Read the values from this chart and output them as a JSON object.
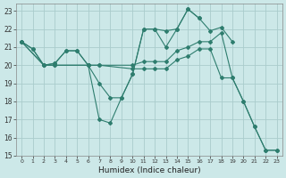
{
  "xlabel": "Humidex (Indice chaleur)",
  "background_color": "#cce8e8",
  "line_color": "#2e7d6e",
  "grid_color": "#aacccc",
  "xlim": [
    -0.5,
    23.5
  ],
  "ylim": [
    15,
    23.4
  ],
  "xticks": [
    0,
    1,
    2,
    3,
    4,
    5,
    6,
    7,
    8,
    9,
    10,
    11,
    12,
    13,
    14,
    15,
    16,
    17,
    18,
    19,
    20,
    21,
    22,
    23
  ],
  "yticks": [
    15,
    16,
    17,
    18,
    19,
    20,
    21,
    22,
    23
  ],
  "lines": [
    {
      "x": [
        0,
        1,
        2,
        3,
        4,
        5,
        6,
        7,
        8,
        9,
        10,
        11,
        12,
        13,
        14,
        15,
        16,
        17,
        18,
        19
      ],
      "y": [
        21.3,
        20.9,
        20.0,
        20.1,
        20.8,
        20.8,
        20.0,
        19.0,
        18.2,
        18.2,
        19.5,
        22.0,
        22.0,
        21.9,
        22.0,
        23.1,
        22.6,
        21.9,
        22.1,
        21.3
      ]
    },
    {
      "x": [
        0,
        1,
        2,
        3,
        4,
        5,
        6,
        7,
        8,
        9,
        10,
        11,
        12,
        13,
        14,
        15,
        16
      ],
      "y": [
        21.3,
        20.9,
        20.0,
        20.1,
        20.8,
        20.8,
        20.0,
        17.0,
        16.8,
        18.2,
        19.5,
        22.0,
        22.0,
        21.0,
        22.0,
        23.1,
        22.6
      ]
    },
    {
      "x": [
        0,
        2,
        3,
        6,
        7,
        10,
        11,
        12,
        13,
        14,
        15,
        16,
        17,
        18,
        19,
        20,
        21,
        22,
        23
      ],
      "y": [
        21.3,
        20.0,
        20.0,
        20.0,
        20.0,
        20.0,
        20.2,
        20.2,
        20.2,
        20.8,
        21.0,
        21.3,
        21.3,
        21.8,
        19.3,
        18.0,
        16.6,
        15.3,
        15.3
      ]
    },
    {
      "x": [
        0,
        2,
        3,
        6,
        7,
        10,
        11,
        12,
        13,
        14,
        15,
        16,
        17,
        18,
        19,
        20,
        21,
        22,
        23
      ],
      "y": [
        21.3,
        20.0,
        20.0,
        20.0,
        20.0,
        19.8,
        19.8,
        19.8,
        19.8,
        20.3,
        20.5,
        20.9,
        20.9,
        19.3,
        19.3,
        18.0,
        16.6,
        15.3,
        15.3
      ]
    }
  ]
}
